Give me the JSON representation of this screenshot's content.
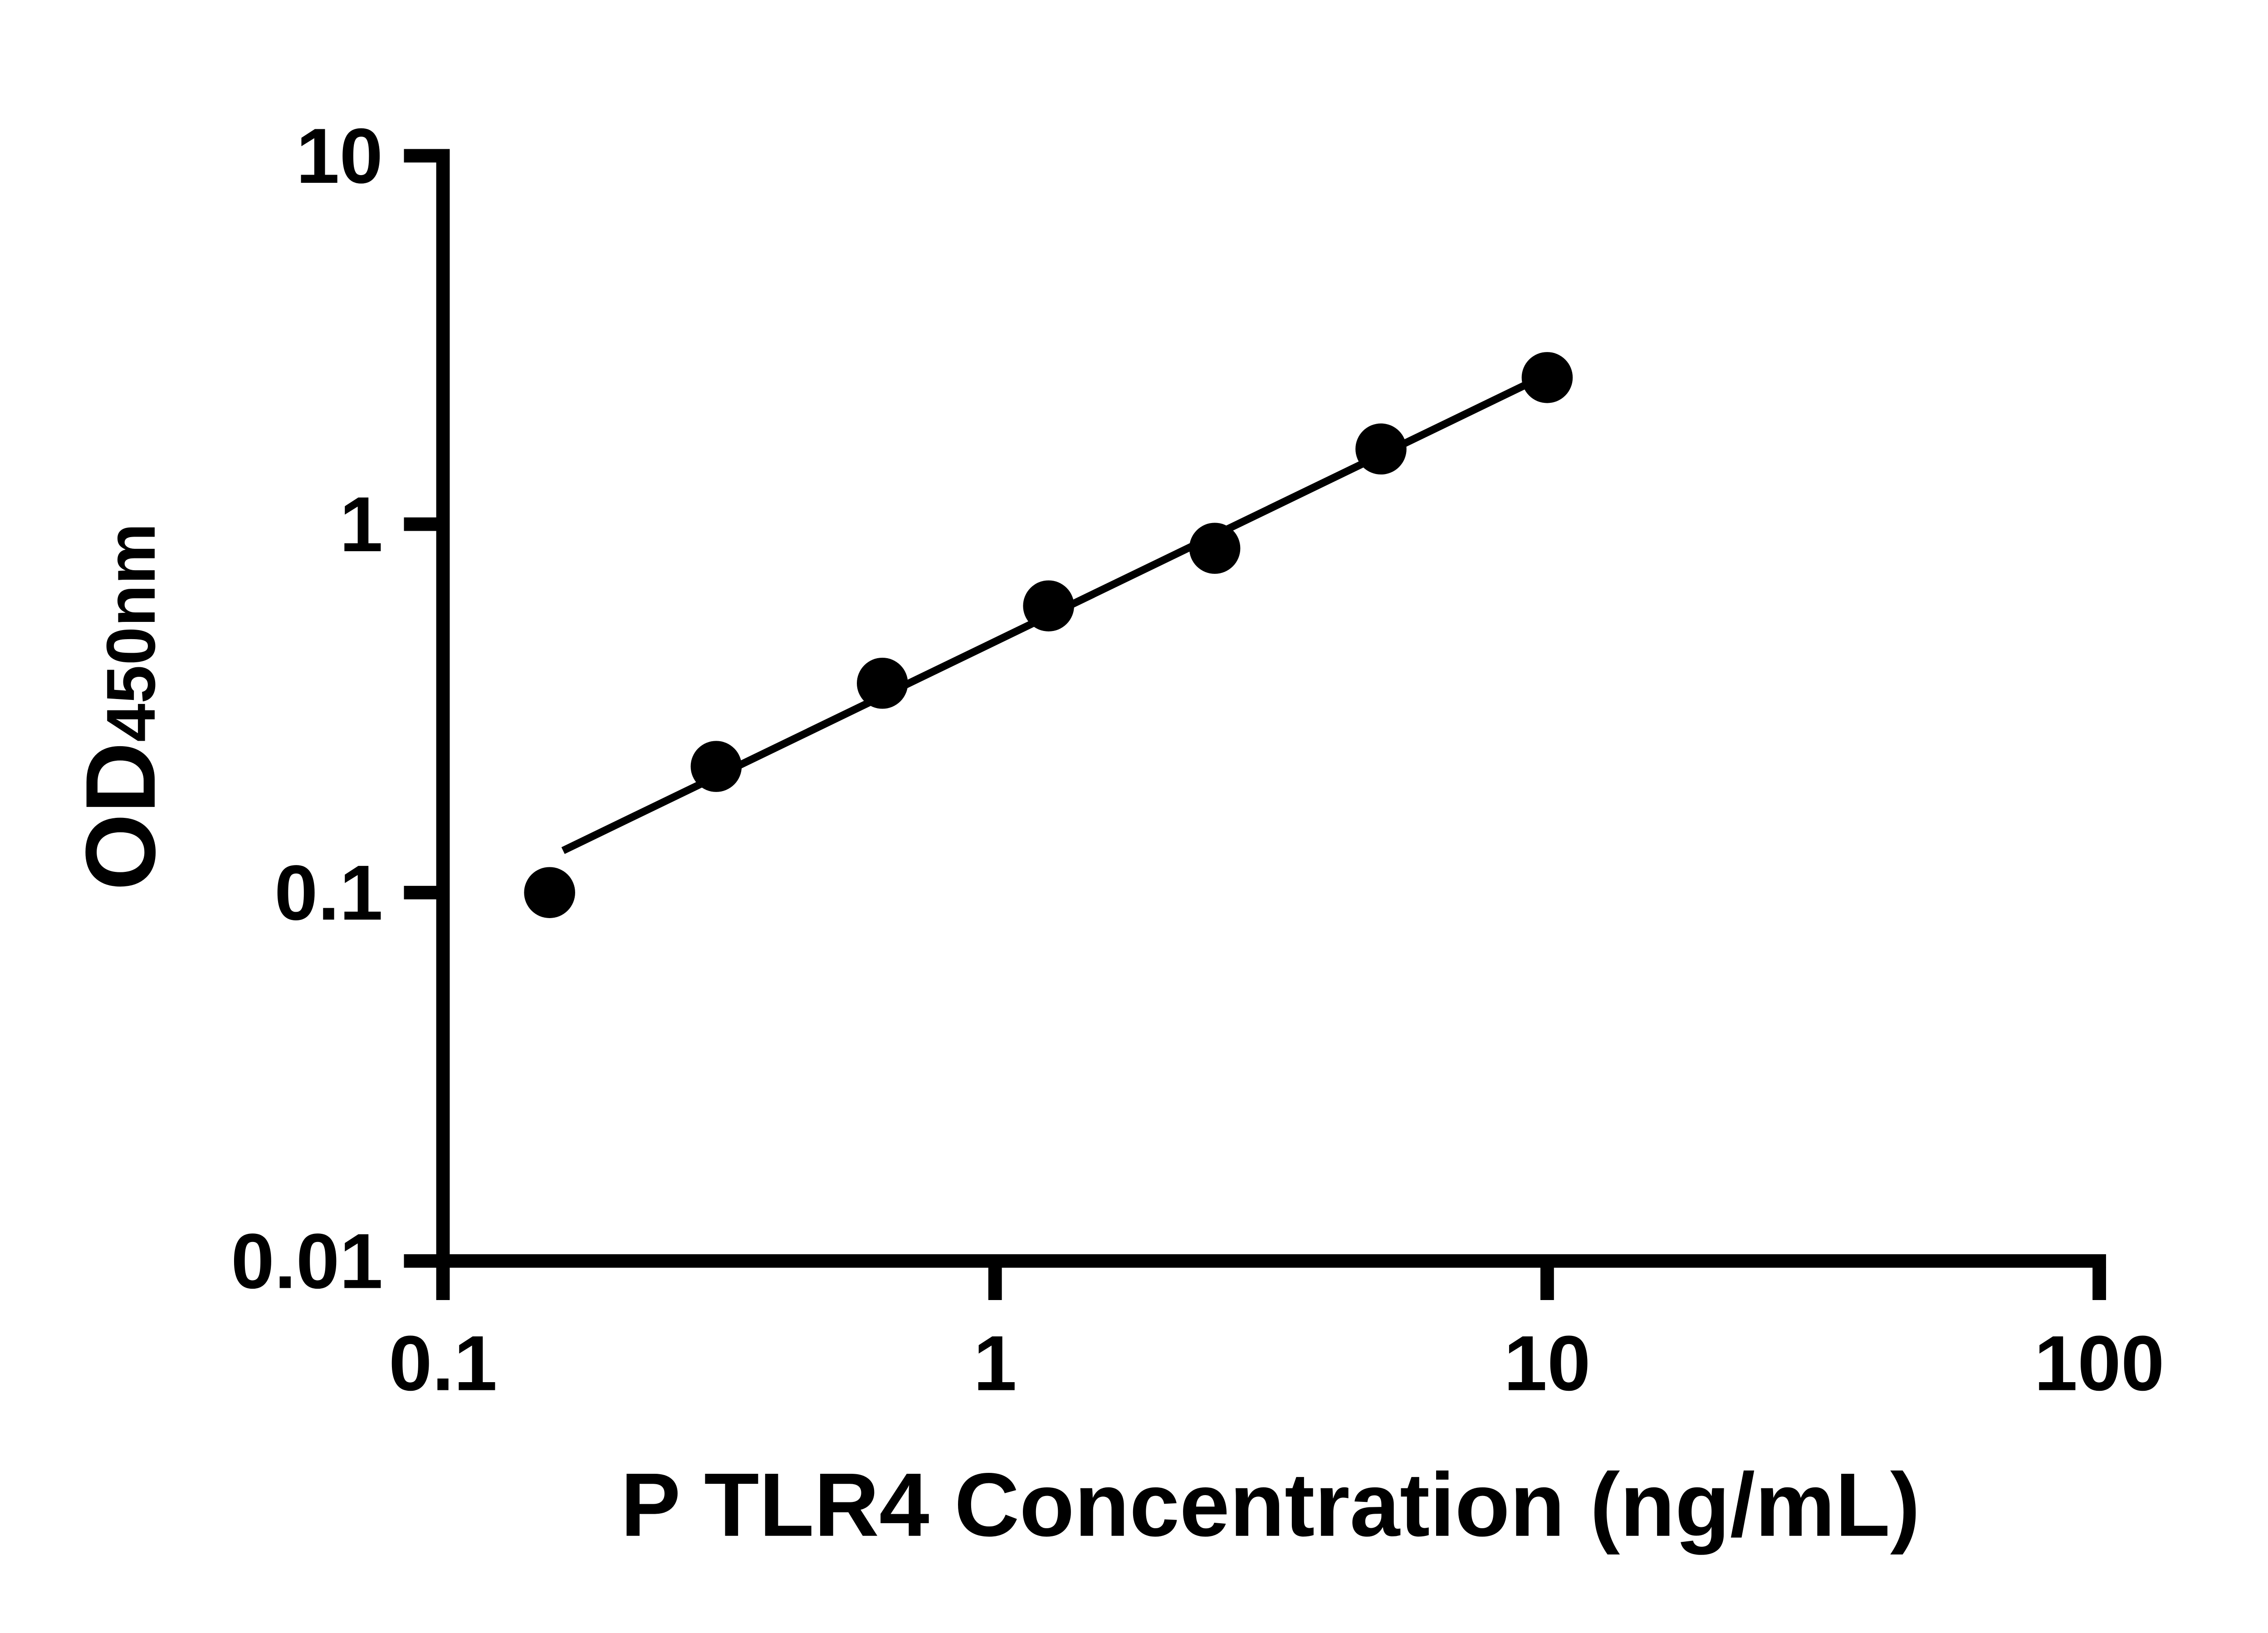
{
  "chart_data": {
    "type": "scatter",
    "title": "",
    "xlabel": "P TLR4 Concentration (ng/mL)",
    "ylabel_main": "OD",
    "ylabel_sub": "450nm",
    "x_scale": "log",
    "y_scale": "log",
    "xlim": [
      0.1,
      100
    ],
    "ylim": [
      0.01,
      10
    ],
    "x_ticks": [
      0.1,
      1,
      10,
      100
    ],
    "x_tick_labels": [
      "0.1",
      "1",
      "10",
      "100"
    ],
    "y_ticks": [
      0.01,
      0.1,
      1,
      10
    ],
    "y_tick_labels": [
      "0.01",
      "0.1",
      "1",
      "10"
    ],
    "grid": "off",
    "legend": "none",
    "points": [
      {
        "x": 0.156,
        "y": 0.1
      },
      {
        "x": 0.3125,
        "y": 0.22
      },
      {
        "x": 0.625,
        "y": 0.37
      },
      {
        "x": 1.25,
        "y": 0.6
      },
      {
        "x": 2.5,
        "y": 0.86
      },
      {
        "x": 5,
        "y": 1.6
      },
      {
        "x": 10,
        "y": 2.5
      }
    ],
    "trendline": {
      "x1": 0.165,
      "y1": 0.13,
      "x2": 10,
      "y2": 2.55
    },
    "marker_color": "#000000",
    "line_color": "#000000",
    "axis_color": "#000000"
  }
}
